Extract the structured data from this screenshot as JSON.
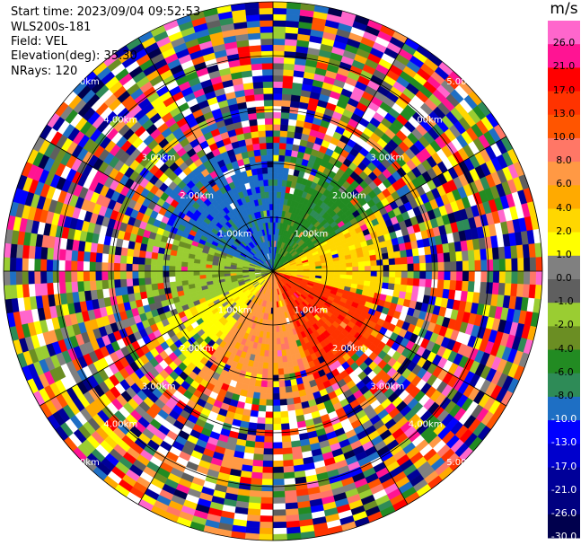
{
  "header": {
    "start_time": "Start time: 2023/09/04 09:52:53",
    "instrument": "WLS200s-181",
    "field": "Field: VEL",
    "elevation": "Elevation(deg): 35.30",
    "nrays": "NRays: 120"
  },
  "colorbar": {
    "unit": "m/s",
    "ticks": [
      "26.0",
      "21.0",
      "17.0",
      "13.0",
      "10.0",
      "8.0",
      "6.0",
      "4.0",
      "2.0",
      "1.0",
      "0.0",
      "-1.0",
      "-2.0",
      "-4.0",
      "-6.0",
      "-8.0",
      "-10.0",
      "-13.0",
      "-17.0",
      "-21.0",
      "-26.0",
      "-30.0"
    ],
    "colors": [
      "#ff66cc",
      "#ff1493",
      "#ff0000",
      "#ff3300",
      "#ff5500",
      "#ff7766",
      "#ff9944",
      "#ffaa00",
      "#ffd700",
      "#ffff00",
      "#808080",
      "#5f5f5f",
      "#9acd32",
      "#6b8e23",
      "#228b22",
      "#2e8b57",
      "#1e6fc4",
      "#0000ff",
      "#0000cd",
      "#000099",
      "#000080",
      "#00004d"
    ]
  },
  "chart_data": {
    "type": "heatmap",
    "projection": "polar PPI",
    "field": "VEL",
    "units": "m/s",
    "nrays": 120,
    "range_rings_km": [
      1.0,
      2.0,
      3.0,
      4.0,
      5.0
    ],
    "ring_labels": [
      "1.00km",
      "2.00km",
      "3.00km",
      "4.00km",
      "5.00km"
    ],
    "colorbar_range": [
      -30.0,
      26.0
    ],
    "colorbar_ticks": [
      26.0,
      21.0,
      17.0,
      13.0,
      10.0,
      8.0,
      6.0,
      4.0,
      2.0,
      1.0,
      0.0,
      -1.0,
      -2.0,
      -4.0,
      -6.0,
      -8.0,
      -10.0,
      -13.0,
      -17.0,
      -21.0,
      -26.0,
      -30.0
    ],
    "near_field_pattern": [
      {
        "sector": "north-west",
        "velocity_ms": -10.0
      },
      {
        "sector": "north-east",
        "velocity_ms": -5.0
      },
      {
        "sector": "east",
        "velocity_ms": 2.0
      },
      {
        "sector": "south-east",
        "velocity_ms": 13.0
      },
      {
        "sector": "south",
        "velocity_ms": 7.0
      },
      {
        "sector": "west",
        "velocity_ms": -2.0
      }
    ],
    "far_field": "noise (all colors)"
  }
}
